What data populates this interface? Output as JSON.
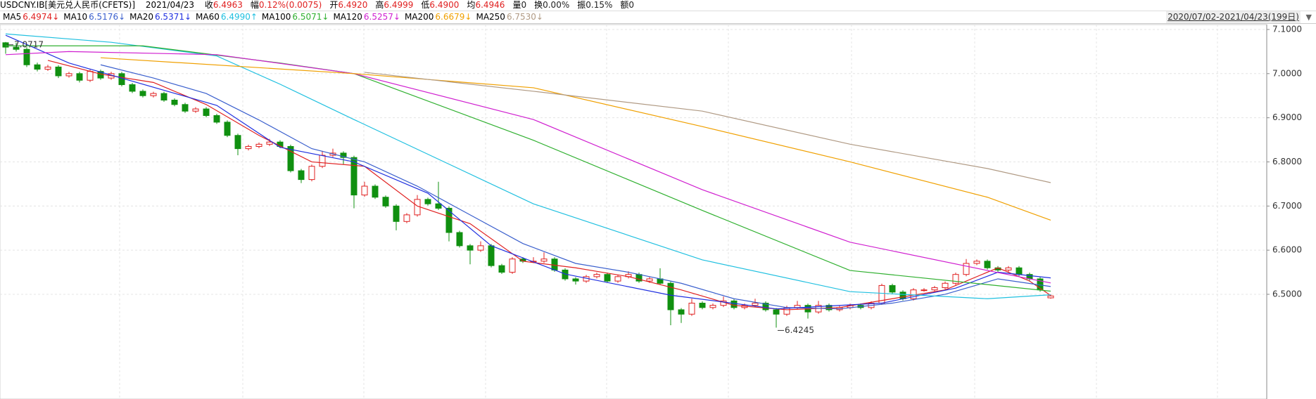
{
  "header": {
    "symbol": "USDCNY.IB[美元兑人民币(CFETS)]",
    "date": "2021/04/23",
    "fields": [
      {
        "label": "收",
        "value": "6.4963",
        "color": "#e02020"
      },
      {
        "label": "幅",
        "value": "0.12%(0.0075)",
        "color": "#e02020"
      },
      {
        "label": "开",
        "value": "6.4920",
        "color": "#e02020"
      },
      {
        "label": "高",
        "value": "6.4999",
        "color": "#e02020"
      },
      {
        "label": "低",
        "value": "6.4900",
        "color": "#e02020"
      },
      {
        "label": "均",
        "value": "6.4946",
        "color": "#e02020"
      },
      {
        "label": "量",
        "value": "0",
        "color": "#222222"
      },
      {
        "label": "换",
        "value": "0.00%",
        "color": "#222222"
      },
      {
        "label": "振",
        "value": "0.15%",
        "color": "#222222"
      },
      {
        "label": "额",
        "value": "0",
        "color": "#222222"
      }
    ]
  },
  "chart_data": {
    "type": "candlestick",
    "range_label": "2020/07/02-2021/04/23(199日)",
    "up_color": "#e02020",
    "down_color": "#109010",
    "ylim": [
      6.2628,
      7.1111
    ],
    "yticks": [
      {
        "value": 7.1,
        "label": "7.1000"
      },
      {
        "value": 7.0,
        "label": "7.0000"
      },
      {
        "value": 6.9,
        "label": "6.9000"
      },
      {
        "value": 6.8,
        "label": "6.8000"
      },
      {
        "value": 6.7,
        "label": "6.7000"
      },
      {
        "value": 6.6,
        "label": "6.6000"
      },
      {
        "value": 6.5,
        "label": "6.5000"
      }
    ],
    "grid": true,
    "annotations": [
      {
        "text": "7.0717",
        "candle": 0
      },
      {
        "text": "6.4245",
        "candle": 73
      }
    ],
    "candles": [
      [
        7.07,
        7.0717,
        7.045,
        7.06
      ],
      [
        7.06,
        7.07,
        7.05,
        7.055
      ],
      [
        7.055,
        7.06,
        7.015,
        7.02
      ],
      [
        7.02,
        7.025,
        7.005,
        7.01
      ],
      [
        7.01,
        7.02,
        7.006,
        7.015
      ],
      [
        7.015,
        7.019,
        6.99,
        6.995
      ],
      [
        6.995,
        7.004,
        6.991,
        7.0
      ],
      [
        7.0,
        7.004,
        6.98,
        6.985
      ],
      [
        6.985,
        7.009,
        6.981,
        7.005
      ],
      [
        7.005,
        7.009,
        6.986,
        6.99
      ],
      [
        6.99,
        7.004,
        6.986,
        7.0
      ],
      [
        7.0,
        7.004,
        6.971,
        6.975
      ],
      [
        6.975,
        6.979,
        6.956,
        6.96
      ],
      [
        6.96,
        6.964,
        6.946,
        6.95
      ],
      [
        6.95,
        6.959,
        6.946,
        6.955
      ],
      [
        6.955,
        6.959,
        6.936,
        6.94
      ],
      [
        6.94,
        6.944,
        6.926,
        6.93
      ],
      [
        6.93,
        6.934,
        6.911,
        6.915
      ],
      [
        6.915,
        6.924,
        6.911,
        6.92
      ],
      [
        6.92,
        6.924,
        6.901,
        6.905
      ],
      [
        6.905,
        6.909,
        6.886,
        6.89
      ],
      [
        6.89,
        6.894,
        6.856,
        6.86
      ],
      [
        6.86,
        6.864,
        6.815,
        6.83
      ],
      [
        6.83,
        6.839,
        6.826,
        6.835
      ],
      [
        6.835,
        6.844,
        6.831,
        6.84
      ],
      [
        6.84,
        6.852,
        6.836,
        6.845
      ],
      [
        6.845,
        6.849,
        6.831,
        6.835
      ],
      [
        6.835,
        6.839,
        6.776,
        6.78
      ],
      [
        6.78,
        6.784,
        6.752,
        6.76
      ],
      [
        6.76,
        6.794,
        6.756,
        6.79
      ],
      [
        6.79,
        6.825,
        6.786,
        6.815
      ],
      [
        6.815,
        6.83,
        6.811,
        6.82
      ],
      [
        6.82,
        6.824,
        6.795,
        6.81
      ],
      [
        6.81,
        6.814,
        6.695,
        6.725
      ],
      [
        6.725,
        6.755,
        6.721,
        6.745
      ],
      [
        6.745,
        6.749,
        6.716,
        6.72
      ],
      [
        6.72,
        6.724,
        6.696,
        6.7
      ],
      [
        6.7,
        6.704,
        6.645,
        6.665
      ],
      [
        6.665,
        6.684,
        6.661,
        6.68
      ],
      [
        6.68,
        6.725,
        6.676,
        6.715
      ],
      [
        6.715,
        6.719,
        6.701,
        6.705
      ],
      [
        6.705,
        6.755,
        6.691,
        6.695
      ],
      [
        6.695,
        6.699,
        6.62,
        6.64
      ],
      [
        6.64,
        6.644,
        6.606,
        6.61
      ],
      [
        6.61,
        6.614,
        6.568,
        6.6
      ],
      [
        6.6,
        6.62,
        6.596,
        6.61
      ],
      [
        6.61,
        6.614,
        6.561,
        6.565
      ],
      [
        6.565,
        6.569,
        6.546,
        6.55
      ],
      [
        6.55,
        6.584,
        6.546,
        6.58
      ],
      [
        6.58,
        6.584,
        6.571,
        6.575
      ],
      [
        6.575,
        6.584,
        6.571,
        6.575
      ],
      [
        6.575,
        6.595,
        6.571,
        6.58
      ],
      [
        6.58,
        6.584,
        6.551,
        6.555
      ],
      [
        6.555,
        6.559,
        6.531,
        6.535
      ],
      [
        6.535,
        6.539,
        6.522,
        6.53
      ],
      [
        6.53,
        6.544,
        6.526,
        6.54
      ],
      [
        6.54,
        6.549,
        6.536,
        6.545
      ],
      [
        6.545,
        6.549,
        6.526,
        6.53
      ],
      [
        6.53,
        6.544,
        6.526,
        6.54
      ],
      [
        6.54,
        6.552,
        6.536,
        6.545
      ],
      [
        6.545,
        6.549,
        6.526,
        6.53
      ],
      [
        6.53,
        6.539,
        6.526,
        6.535
      ],
      [
        6.535,
        6.559,
        6.521,
        6.525
      ],
      [
        6.525,
        6.529,
        6.43,
        6.465
      ],
      [
        6.465,
        6.469,
        6.435,
        6.455
      ],
      [
        6.455,
        6.49,
        6.451,
        6.48
      ],
      [
        6.48,
        6.484,
        6.466,
        6.47
      ],
      [
        6.47,
        6.479,
        6.466,
        6.475
      ],
      [
        6.475,
        6.495,
        6.471,
        6.485
      ],
      [
        6.485,
        6.489,
        6.466,
        6.47
      ],
      [
        6.47,
        6.479,
        6.466,
        6.475
      ],
      [
        6.475,
        6.49,
        6.471,
        6.48
      ],
      [
        6.48,
        6.484,
        6.461,
        6.465
      ],
      [
        6.465,
        6.469,
        6.4245,
        6.455
      ],
      [
        6.455,
        6.474,
        6.451,
        6.47
      ],
      [
        6.47,
        6.485,
        6.466,
        6.475
      ],
      [
        6.475,
        6.479,
        6.445,
        6.46
      ],
      [
        6.46,
        6.485,
        6.456,
        6.475
      ],
      [
        6.475,
        6.479,
        6.461,
        6.465
      ],
      [
        6.465,
        6.474,
        6.461,
        6.47
      ],
      [
        6.47,
        6.479,
        6.466,
        6.475
      ],
      [
        6.475,
        6.479,
        6.466,
        6.47
      ],
      [
        6.47,
        6.484,
        6.466,
        6.48
      ],
      [
        6.48,
        6.524,
        6.476,
        6.52
      ],
      [
        6.52,
        6.524,
        6.501,
        6.505
      ],
      [
        6.505,
        6.509,
        6.486,
        6.49
      ],
      [
        6.49,
        6.514,
        6.486,
        6.51
      ],
      [
        6.51,
        6.514,
        6.506,
        6.51
      ],
      [
        6.51,
        6.519,
        6.506,
        6.515
      ],
      [
        6.515,
        6.529,
        6.511,
        6.525
      ],
      [
        6.525,
        6.549,
        6.521,
        6.545
      ],
      [
        6.545,
        6.58,
        6.541,
        6.57
      ],
      [
        6.57,
        6.579,
        6.566,
        6.575
      ],
      [
        6.575,
        6.579,
        6.556,
        6.56
      ],
      [
        6.56,
        6.564,
        6.551,
        6.555
      ],
      [
        6.555,
        6.564,
        6.551,
        6.56
      ],
      [
        6.56,
        6.564,
        6.541,
        6.545
      ],
      [
        6.545,
        6.549,
        6.531,
        6.535
      ],
      [
        6.535,
        6.539,
        6.506,
        6.51
      ],
      [
        6.492,
        6.4999,
        6.49,
        6.4963
      ]
    ],
    "series": [
      {
        "name": "MA5",
        "legend_value": "6.4974↓",
        "color": "#e02020",
        "x": [
          4,
          9,
          14,
          19,
          24,
          29,
          34,
          39,
          44,
          49,
          54,
          59,
          64,
          69,
          74,
          79,
          84,
          89,
          94,
          97,
          99
        ],
        "values": [
          7.03,
          6.999,
          6.98,
          6.93,
          6.86,
          6.8,
          6.79,
          6.7,
          6.66,
          6.575,
          6.56,
          6.54,
          6.51,
          6.475,
          6.465,
          6.47,
          6.49,
          6.51,
          6.56,
          6.53,
          6.4974
        ]
      },
      {
        "name": "MA10",
        "legend_value": "6.5176↓",
        "color": "#3a5fcd",
        "x": [
          9,
          14,
          19,
          24,
          29,
          34,
          39,
          44,
          49,
          54,
          59,
          64,
          69,
          74,
          79,
          84,
          89,
          94,
          99
        ],
        "values": [
          7.02,
          6.99,
          6.955,
          6.895,
          6.83,
          6.8,
          6.745,
          6.68,
          6.615,
          6.57,
          6.55,
          6.525,
          6.49,
          6.47,
          6.467,
          6.48,
          6.5,
          6.535,
          6.5176
        ]
      },
      {
        "name": "MA20",
        "legend_value": "6.5371↓",
        "color": "#2030e0",
        "x": [
          0,
          6,
          20,
          26,
          33,
          40,
          46,
          53,
          63,
          73,
          83,
          90,
          94,
          99
        ],
        "values": [
          7.087,
          7.024,
          6.928,
          6.833,
          6.8,
          6.729,
          6.61,
          6.546,
          6.498,
          6.467,
          6.48,
          6.514,
          6.55,
          6.5371
        ]
      },
      {
        "name": "MA60",
        "legend_value": "6.4990↑",
        "color": "#20c0e0",
        "x": [
          0,
          10,
          20,
          26,
          33,
          50,
          66,
          80,
          93,
          99
        ],
        "values": [
          7.09,
          7.071,
          7.04,
          6.976,
          6.896,
          6.705,
          6.578,
          6.506,
          6.49,
          6.499
        ]
      },
      {
        "name": "MA100",
        "legend_value": "6.5071↓",
        "color": "#30b030",
        "x": [
          0,
          13,
          26,
          33,
          50,
          66,
          80,
          93,
          99
        ],
        "values": [
          7.063,
          7.063,
          7.024,
          7.0,
          6.849,
          6.69,
          6.554,
          6.522,
          6.5071
        ]
      },
      {
        "name": "MA120",
        "legend_value": "6.5257↓",
        "color": "#d020d0",
        "x": [
          0,
          6,
          20,
          33,
          50,
          66,
          80,
          93,
          99
        ],
        "values": [
          7.043,
          7.05,
          7.043,
          7.0,
          6.896,
          6.737,
          6.618,
          6.554,
          6.5257
        ]
      },
      {
        "name": "MA200",
        "legend_value": "6.6679↓",
        "color": "#f0a000",
        "x": [
          9,
          33,
          50,
          66,
          80,
          93,
          99
        ],
        "values": [
          7.036,
          7.0,
          6.968,
          6.88,
          6.8,
          6.72,
          6.6679
        ]
      },
      {
        "name": "MA250",
        "legend_value": "6.7530↓",
        "color": "#b09a84",
        "x": [
          34,
          50,
          66,
          80,
          93,
          99
        ],
        "values": [
          7.003,
          6.96,
          6.915,
          6.84,
          6.785,
          6.753
        ]
      }
    ]
  }
}
